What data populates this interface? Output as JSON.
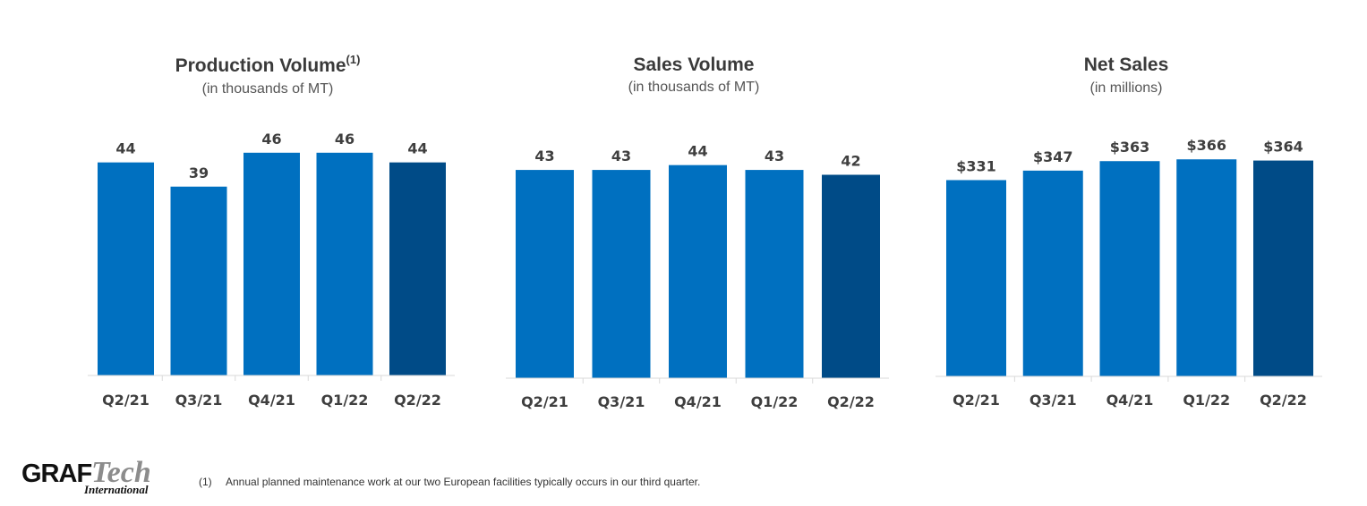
{
  "colors": {
    "bar": "#0070c0",
    "bar_highlight": "#004b87",
    "axis": "#d9d9d9",
    "text": "#3f3f3f"
  },
  "chart_data": [
    {
      "type": "bar",
      "title": "Production Volume",
      "title_sup": "(1)",
      "subtitle": "(in thousands of MT)",
      "categories": [
        "Q2/21",
        "Q3/21",
        "Q4/21",
        "Q1/22",
        "Q2/22"
      ],
      "values": [
        44,
        39,
        46,
        46,
        44
      ],
      "value_labels": [
        "44",
        "39",
        "46",
        "46",
        "44"
      ],
      "highlight_index": 4,
      "ylim": [
        0,
        48
      ],
      "grid": false,
      "xlabel": "",
      "ylabel": ""
    },
    {
      "type": "bar",
      "title": "Sales Volume",
      "title_sup": "",
      "subtitle": "(in thousands of MT)",
      "categories": [
        "Q2/21",
        "Q3/21",
        "Q4/21",
        "Q1/22",
        "Q2/22"
      ],
      "values": [
        43,
        43,
        44,
        43,
        42
      ],
      "value_labels": [
        "43",
        "43",
        "44",
        "43",
        "42"
      ],
      "highlight_index": 4,
      "ylim": [
        0,
        48
      ],
      "grid": false,
      "xlabel": "",
      "ylabel": ""
    },
    {
      "type": "bar",
      "title": "Net Sales",
      "title_sup": "",
      "subtitle": "(in millions)",
      "categories": [
        "Q2/21",
        "Q3/21",
        "Q4/21",
        "Q1/22",
        "Q2/22"
      ],
      "values": [
        331,
        347,
        363,
        366,
        364
      ],
      "value_labels": [
        "$331",
        "$347",
        "$363",
        "$366",
        "$364"
      ],
      "highlight_index": 4,
      "ylim": [
        0,
        392
      ],
      "grid": false,
      "xlabel": "",
      "ylabel": ""
    }
  ],
  "logo": {
    "graf": "GRAF",
    "tech": "Tech",
    "international": "International"
  },
  "footnote": {
    "marker": "(1)",
    "text": "Annual planned maintenance work at our two European facilities typically occurs in our third quarter."
  }
}
